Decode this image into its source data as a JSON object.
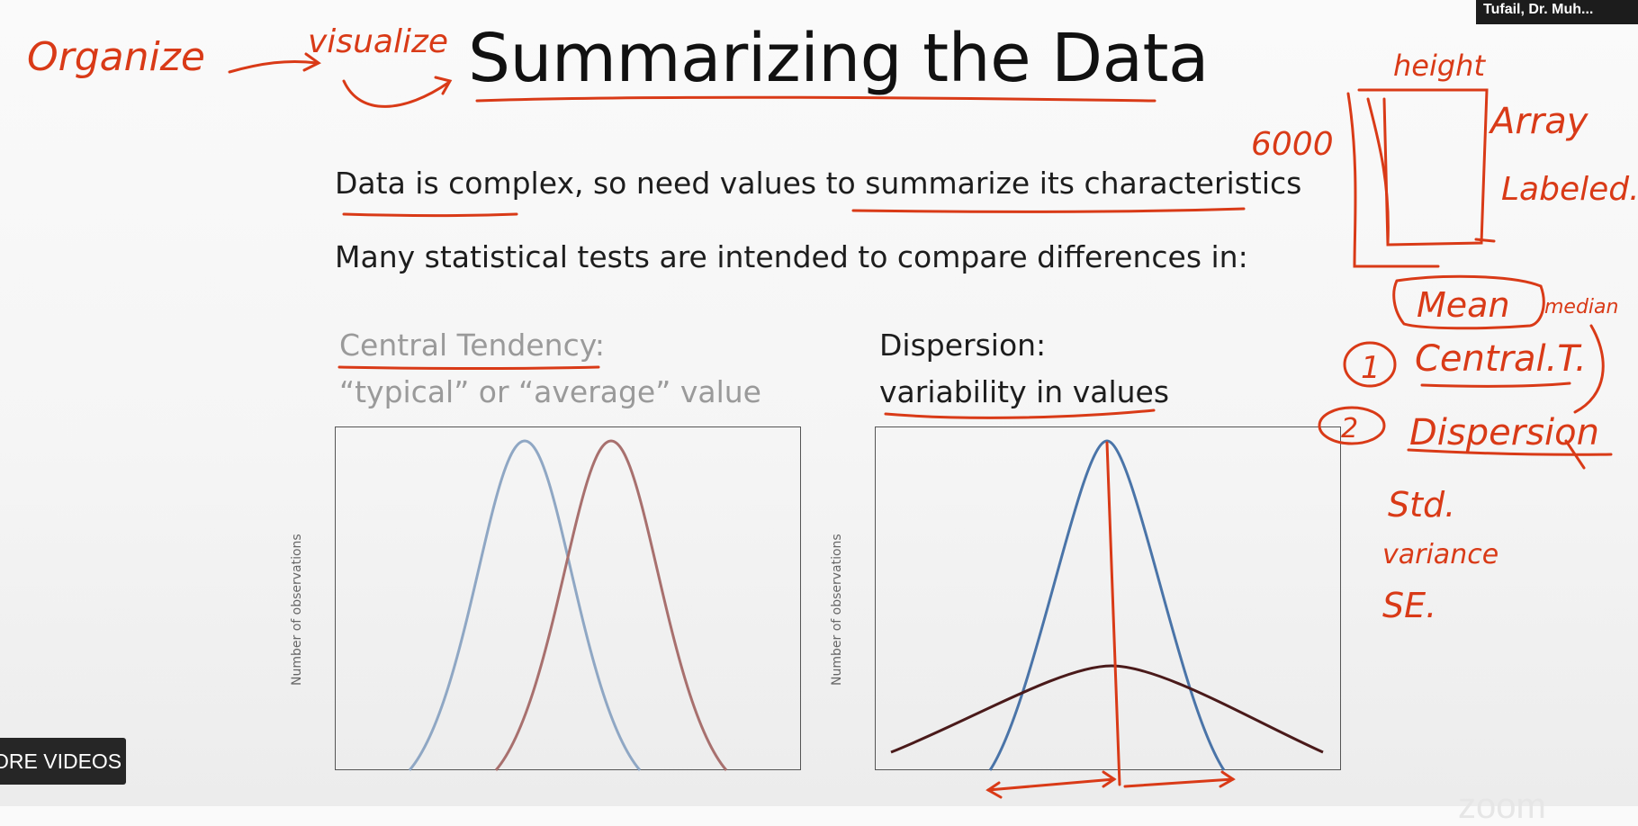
{
  "slide": {
    "title": "Summarizing the Data",
    "line1": "Data is complex, so need values to summarize its characteristics",
    "line2": "Many statistical tests are intended to compare differences in:",
    "central_tendency": {
      "heading": "Central Tendency:",
      "subtitle": "“typical” or “average” value",
      "ylabel": "Number of observations"
    },
    "dispersion": {
      "heading": "Dispersion:",
      "subtitle": "variability in values",
      "ylabel": "Number of observations"
    },
    "colors": {
      "curve_blue": "#8fa7c4",
      "curve_red": "#a8706e",
      "curve_blue_strong": "#4a74a8",
      "curve_dark": "#4a1a1a",
      "annotation": "#d93a17"
    }
  },
  "annotations": {
    "top_left": [
      "Organize",
      "visualize"
    ],
    "right": [
      "height",
      "6000",
      "Array",
      "Labeled",
      "Mean",
      "median",
      "1",
      "Central.T.",
      "2",
      "Dispersion",
      "Std.",
      "variance",
      "SE."
    ]
  },
  "overlay": {
    "videos_button": "ORE VIDEOS",
    "participant_name": "Tufail, Dr. Muh...",
    "watermark": "zoom"
  }
}
